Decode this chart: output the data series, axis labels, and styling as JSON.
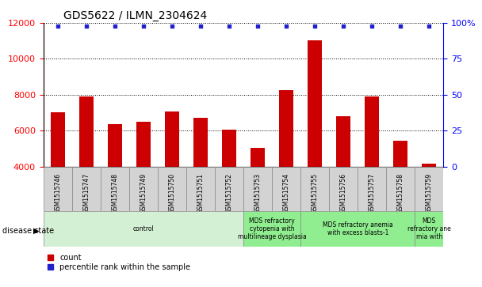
{
  "title": "GDS5622 / ILMN_2304624",
  "samples": [
    "GSM1515746",
    "GSM1515747",
    "GSM1515748",
    "GSM1515749",
    "GSM1515750",
    "GSM1515751",
    "GSM1515752",
    "GSM1515753",
    "GSM1515754",
    "GSM1515755",
    "GSM1515756",
    "GSM1515757",
    "GSM1515758",
    "GSM1515759"
  ],
  "counts": [
    7000,
    7900,
    6350,
    6500,
    7050,
    6700,
    6050,
    5050,
    8250,
    11050,
    6800,
    7900,
    5450,
    4150
  ],
  "percentile_ranks_pct": [
    98,
    98,
    98,
    98,
    98,
    98,
    98,
    98,
    98,
    98,
    98,
    98,
    98,
    98
  ],
  "bar_color": "#cc0000",
  "dot_color": "#2222cc",
  "ylim_left": [
    4000,
    12000
  ],
  "ylim_right": [
    0,
    100
  ],
  "yticks_left": [
    4000,
    6000,
    8000,
    10000,
    12000
  ],
  "yticks_right": [
    0,
    25,
    50,
    75,
    100
  ],
  "disease_groups": [
    {
      "label": "control",
      "start": 0,
      "end": 7,
      "color": "#d4f0d4"
    },
    {
      "label": "MDS refractory\ncytopenia with\nmultilineage dysplasia",
      "start": 7,
      "end": 9,
      "color": "#90ee90"
    },
    {
      "label": "MDS refractory anemia\nwith excess blasts-1",
      "start": 9,
      "end": 13,
      "color": "#90ee90"
    },
    {
      "label": "MDS\nrefractory ane\nmia with",
      "start": 13,
      "end": 14,
      "color": "#90ee90"
    }
  ],
  "disease_state_label": "disease state",
  "legend_count_label": "count",
  "legend_percentile_label": "percentile rank within the sample"
}
